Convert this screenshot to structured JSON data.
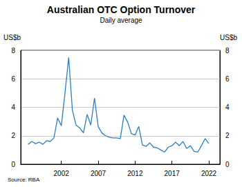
{
  "chart_data": {
    "type": "line",
    "title": "Australian OTC Option Turnover",
    "subtitle": "Daily average",
    "ylabel": "US$b",
    "source": "Source: RBA",
    "color": "#2a7fc1",
    "grid": true,
    "x": [
      1997.5,
      1998,
      1998.5,
      1999,
      1999.5,
      2000,
      2000.5,
      2001,
      2001.5,
      2002,
      2002.5,
      2003,
      2003.5,
      2004,
      2004.5,
      2005,
      2005.5,
      2006,
      2006.5,
      2007,
      2007.5,
      2008,
      2008.5,
      2009,
      2009.5,
      2010,
      2010.5,
      2011,
      2011.5,
      2012,
      2012.5,
      2013,
      2013.5,
      2014,
      2014.5,
      2015,
      2015.5,
      2016,
      2016.5,
      2017,
      2017.5,
      2018,
      2018.5,
      2019,
      2019.5,
      2020,
      2020.5,
      2021,
      2021.5,
      2022
    ],
    "values": [
      1.4,
      1.6,
      1.45,
      1.55,
      1.4,
      1.65,
      1.6,
      1.85,
      3.25,
      2.7,
      5.0,
      7.5,
      3.8,
      2.75,
      2.55,
      2.2,
      3.5,
      2.75,
      4.65,
      2.65,
      2.2,
      2.0,
      1.9,
      1.85,
      1.85,
      1.8,
      3.45,
      2.95,
      2.15,
      2.05,
      2.65,
      1.35,
      1.25,
      1.5,
      1.2,
      1.15,
      1.0,
      0.85,
      1.2,
      1.3,
      1.55,
      1.3,
      1.6,
      1.1,
      1.3,
      0.9,
      0.85,
      1.3,
      1.8,
      1.45
    ],
    "xlim": [
      1996.5,
      2023.5
    ],
    "xticks": [
      2002,
      2007,
      2012,
      2017,
      2022
    ],
    "ylim": [
      0,
      8
    ],
    "yticks": [
      0,
      2,
      4,
      6,
      8
    ]
  }
}
